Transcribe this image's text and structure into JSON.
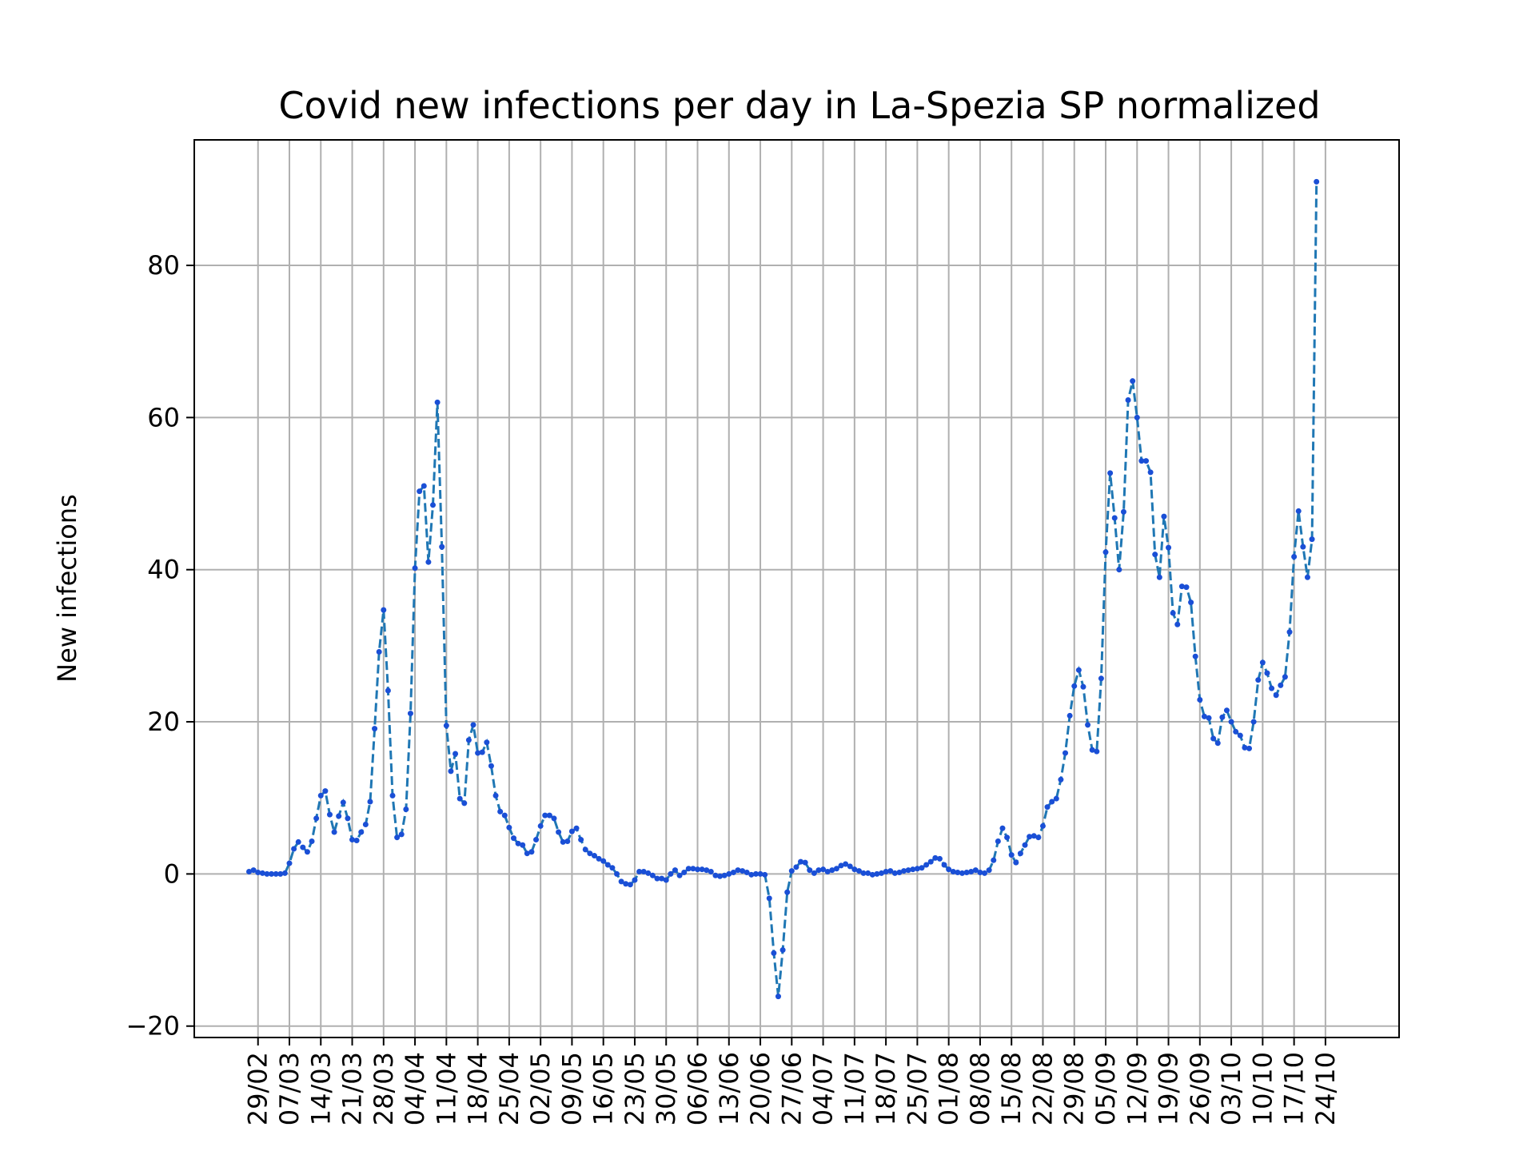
{
  "chart_data": {
    "type": "line",
    "title": "Covid new infections per day in La-Spezia SP normalized",
    "xlabel": "",
    "ylabel": "New infections",
    "ylim": [
      -21.5,
      96.5
    ],
    "yticks": [
      -20,
      0,
      20,
      40,
      60,
      80
    ],
    "ytick_labels": [
      "−20",
      "0",
      "20",
      "40",
      "60",
      "80"
    ],
    "x_start": "2020-02-27",
    "xticks": [
      "29/02",
      "07/03",
      "14/03",
      "21/03",
      "28/03",
      "04/04",
      "11/04",
      "18/04",
      "25/04",
      "02/05",
      "09/05",
      "16/05",
      "23/05",
      "30/05",
      "06/06",
      "13/06",
      "20/06",
      "27/06",
      "04/07",
      "11/07",
      "18/07",
      "25/07",
      "01/08",
      "08/08",
      "15/08",
      "22/08",
      "29/08",
      "05/09",
      "12/09",
      "19/09",
      "26/09",
      "03/10",
      "10/10",
      "17/10",
      "24/10"
    ],
    "grid": true,
    "series": [
      {
        "style": "dashed line with dot markers",
        "color": "#1f77b4",
        "marker_color": "#1a4fd6",
        "values": [
          0.3,
          0.5,
          0.2,
          0.1,
          0.0,
          0.0,
          0.0,
          0.0,
          0.1,
          1.4,
          3.3,
          4.2,
          3.5,
          2.9,
          4.3,
          7.3,
          10.3,
          10.9,
          7.8,
          5.5,
          7.6,
          9.4,
          7.3,
          4.5,
          4.4,
          5.5,
          6.5,
          9.5,
          19.1,
          29.2,
          34.7,
          24.1,
          10.3,
          4.8,
          5.2,
          8.5,
          21.1,
          40.2,
          50.3,
          51.0,
          41.0,
          48.5,
          62.0,
          43.0,
          19.5,
          13.5,
          15.8,
          9.9,
          9.3,
          17.6,
          19.6,
          15.9,
          16.0,
          17.3,
          14.2,
          10.3,
          8.2,
          7.7,
          6.1,
          4.7,
          4.0,
          3.8,
          2.7,
          2.9,
          4.5,
          6.3,
          7.7,
          7.7,
          7.3,
          5.5,
          4.2,
          4.3,
          5.6,
          6.0,
          4.5,
          3.2,
          2.7,
          2.4,
          2.0,
          1.7,
          1.2,
          0.8,
          0.0,
          -1.0,
          -1.3,
          -1.4,
          -0.8,
          0.3,
          0.3,
          0.1,
          -0.2,
          -0.6,
          -0.6,
          -0.8,
          0.0,
          0.5,
          -0.2,
          0.2,
          0.7,
          0.7,
          0.6,
          0.6,
          0.5,
          0.3,
          -0.2,
          -0.3,
          -0.2,
          0.0,
          0.2,
          0.5,
          0.4,
          0.2,
          -0.1,
          0.0,
          0.0,
          -0.1,
          -3.2,
          -10.4,
          -16.1,
          -10.0,
          -2.4,
          0.4,
          0.9,
          1.6,
          1.5,
          0.5,
          0.1,
          0.5,
          0.6,
          0.3,
          0.5,
          0.7,
          1.1,
          1.3,
          1.0,
          0.6,
          0.4,
          0.1,
          0.1,
          -0.1,
          0.0,
          0.1,
          0.3,
          0.4,
          0.1,
          0.2,
          0.4,
          0.5,
          0.6,
          0.7,
          0.8,
          1.2,
          1.6,
          2.1,
          2.0,
          1.2,
          0.6,
          0.3,
          0.2,
          0.1,
          0.2,
          0.3,
          0.5,
          0.2,
          0.1,
          0.5,
          1.8,
          4.3,
          6.0,
          4.8,
          2.5,
          1.5,
          2.7,
          3.8,
          4.9,
          5.0,
          4.8,
          6.3,
          8.8,
          9.5,
          9.9,
          12.4,
          15.9,
          20.8,
          24.7,
          26.8,
          24.6,
          19.6,
          16.3,
          16.1,
          25.7,
          42.3,
          52.7,
          46.8,
          40.0,
          47.6,
          62.3,
          64.8,
          60.0,
          54.3,
          54.3,
          52.8,
          42.0,
          39.0,
          47.0,
          42.9,
          34.3,
          32.8,
          37.8,
          37.7,
          35.7,
          28.6,
          22.9,
          20.7,
          20.5,
          17.8,
          17.2,
          20.6,
          21.5,
          20.0,
          18.7,
          18.2,
          16.6,
          16.5,
          20.0,
          25.5,
          27.8,
          26.4,
          24.4,
          23.5,
          24.8,
          25.9,
          31.8,
          41.7,
          47.7,
          43.0,
          39.0,
          44.0,
          91.0
        ]
      }
    ]
  }
}
